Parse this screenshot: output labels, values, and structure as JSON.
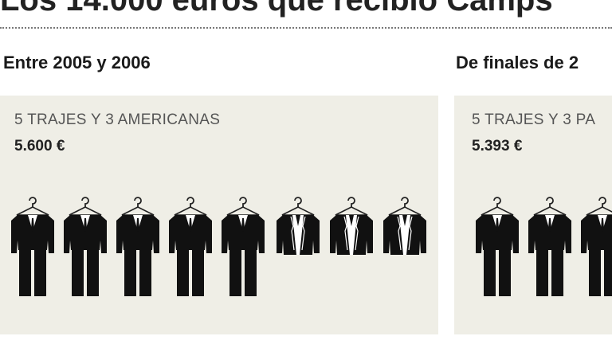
{
  "title": "Los 14.000 euros que recibió Camps",
  "panels": [
    {
      "heading": "Entre 2005 y 2006",
      "items": "5 TRAJES Y 3 AMERICANAS",
      "price": "5.600 €"
    },
    {
      "heading": "De finales de 2",
      "items": "5 TRAJES Y 3 PA",
      "price": "5.393 €"
    }
  ]
}
